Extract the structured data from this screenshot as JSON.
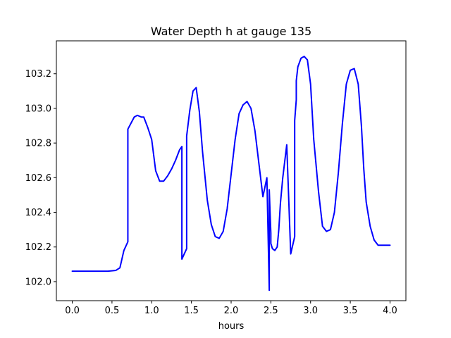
{
  "chart_data": {
    "type": "line",
    "title": "Water Depth h at gauge 135",
    "xlabel": "hours",
    "ylabel": "",
    "xlim": [
      -0.2,
      4.2
    ],
    "ylim": [
      101.89,
      103.39
    ],
    "xticks": [
      0.0,
      0.5,
      1.0,
      1.5,
      2.0,
      2.5,
      3.0,
      3.5,
      4.0
    ],
    "xtick_labels": [
      "0.0",
      "0.5",
      "1.0",
      "1.5",
      "2.0",
      "2.5",
      "3.0",
      "3.5",
      "4.0"
    ],
    "yticks": [
      102.0,
      102.2,
      102.4,
      102.6,
      102.8,
      103.0,
      103.2
    ],
    "ytick_labels": [
      "102.0",
      "102.2",
      "102.4",
      "102.6",
      "102.8",
      "103.0",
      "103.2"
    ],
    "grid": false,
    "legend": "none",
    "series_color": "#0000ff",
    "series": [
      {
        "x": [
          0.0,
          0.2,
          0.3,
          0.45,
          0.55,
          0.6,
          0.62,
          0.65,
          0.7,
          0.7,
          0.78,
          0.82,
          0.87,
          0.9,
          0.95,
          1.0,
          1.05,
          1.1,
          1.15,
          1.2,
          1.25,
          1.3,
          1.35,
          1.38,
          1.38,
          1.41,
          1.44,
          1.44,
          1.48,
          1.52,
          1.56,
          1.6,
          1.64,
          1.7,
          1.75,
          1.8,
          1.85,
          1.9,
          1.95,
          2.0,
          2.05,
          2.1,
          2.15,
          2.2,
          2.25,
          2.3,
          2.35,
          2.4,
          2.45,
          2.48,
          2.48,
          2.49,
          2.5,
          2.5,
          2.52,
          2.55,
          2.58,
          2.6,
          2.62,
          2.65,
          2.7,
          2.75,
          2.8,
          2.8,
          2.82,
          2.82,
          2.84,
          2.88,
          2.92,
          2.96,
          3.0,
          3.04,
          3.1,
          3.15,
          3.2,
          3.25,
          3.3,
          3.35,
          3.4,
          3.45,
          3.5,
          3.55,
          3.6,
          3.64,
          3.67,
          3.7,
          3.75,
          3.8,
          3.85,
          3.9,
          3.95,
          4.0
        ],
        "y": [
          102.06,
          102.06,
          102.06,
          102.06,
          102.065,
          102.08,
          102.12,
          102.18,
          102.23,
          102.88,
          102.95,
          102.96,
          102.95,
          102.95,
          102.89,
          102.82,
          102.64,
          102.58,
          102.58,
          102.61,
          102.65,
          102.7,
          102.76,
          102.78,
          102.13,
          102.16,
          102.19,
          102.84,
          102.99,
          103.1,
          103.12,
          102.98,
          102.75,
          102.47,
          102.33,
          102.26,
          102.25,
          102.29,
          102.42,
          102.62,
          102.82,
          102.97,
          103.02,
          103.04,
          103.0,
          102.87,
          102.68,
          102.49,
          102.6,
          101.95,
          102.53,
          102.4,
          102.28,
          102.22,
          102.19,
          102.18,
          102.2,
          102.3,
          102.45,
          102.6,
          102.79,
          102.16,
          102.26,
          102.93,
          103.05,
          103.16,
          103.24,
          103.29,
          103.3,
          103.28,
          103.14,
          102.82,
          102.52,
          102.32,
          102.29,
          102.3,
          102.4,
          102.63,
          102.91,
          103.14,
          103.22,
          103.23,
          103.14,
          102.9,
          102.65,
          102.46,
          102.32,
          102.24,
          102.21,
          102.21,
          102.21,
          102.21
        ]
      }
    ]
  }
}
